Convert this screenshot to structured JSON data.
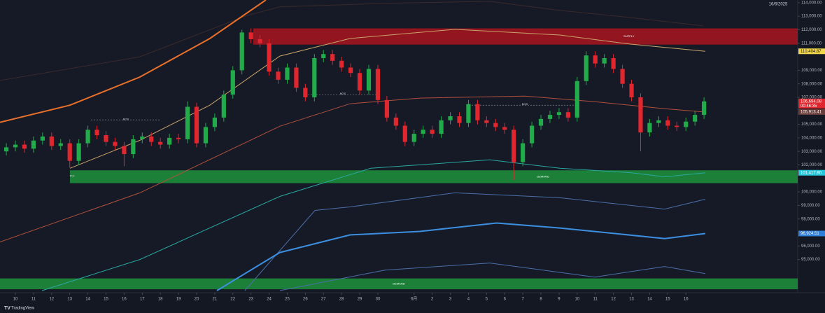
{
  "chart_data": {
    "type": "candlestick",
    "date_label": "16/6/2025",
    "brand": "TradingView",
    "countdown": "00:46:35",
    "up_color": "#22ab4a",
    "down_color": "#e0262e",
    "xlim": [
      -0.85,
      43.17
    ],
    "ylim": [
      92700,
      114200
    ],
    "xticks": [
      {
        "value": 0,
        "label": "10"
      },
      {
        "value": 1,
        "label": "11"
      },
      {
        "value": 2,
        "label": "12"
      },
      {
        "value": 3,
        "label": "13"
      },
      {
        "value": 4,
        "label": "14"
      },
      {
        "value": 5,
        "label": "15"
      },
      {
        "value": 6,
        "label": "16"
      },
      {
        "value": 7,
        "label": "17"
      },
      {
        "value": 8,
        "label": "18"
      },
      {
        "value": 9,
        "label": "19"
      },
      {
        "value": 10,
        "label": "20"
      },
      {
        "value": 11,
        "label": "21"
      },
      {
        "value": 12,
        "label": "22"
      },
      {
        "value": 13,
        "label": "23"
      },
      {
        "value": 14,
        "label": "24"
      },
      {
        "value": 15,
        "label": "25"
      },
      {
        "value": 16,
        "label": "26"
      },
      {
        "value": 17,
        "label": "27"
      },
      {
        "value": 18,
        "label": "28"
      },
      {
        "value": 19,
        "label": "29"
      },
      {
        "value": 20,
        "label": "30"
      },
      {
        "value": 22,
        "label": "6月"
      },
      {
        "value": 23,
        "label": "2"
      },
      {
        "value": 24,
        "label": "3"
      },
      {
        "value": 25,
        "label": "4"
      },
      {
        "value": 26,
        "label": "5"
      },
      {
        "value": 27,
        "label": "6"
      },
      {
        "value": 28,
        "label": "7"
      },
      {
        "value": 29,
        "label": "8"
      },
      {
        "value": 30,
        "label": "9"
      },
      {
        "value": 31,
        "label": "10"
      },
      {
        "value": 32,
        "label": "11"
      },
      {
        "value": 33,
        "label": "12"
      },
      {
        "value": 34,
        "label": "13"
      },
      {
        "value": 35,
        "label": "14"
      },
      {
        "value": 36,
        "label": "15"
      },
      {
        "value": 37,
        "label": "16"
      }
    ],
    "yticks": [
      {
        "value": 114000,
        "label": "114,000.00"
      },
      {
        "value": 113000,
        "label": "113,000.00"
      },
      {
        "value": 112000,
        "label": "112,000.00"
      },
      {
        "value": 111000,
        "label": "111,000.00"
      },
      {
        "value": 109000,
        "label": "109,000.00"
      },
      {
        "value": 108000,
        "label": "108,000.00"
      },
      {
        "value": 107000,
        "label": "107,000.00"
      },
      {
        "value": 105000,
        "label": "105,000.00"
      },
      {
        "value": 104000,
        "label": "104,000.00"
      },
      {
        "value": 103000,
        "label": "103,000.00"
      },
      {
        "value": 102000,
        "label": "102,000.00"
      },
      {
        "value": 100000,
        "label": "100,000.00"
      },
      {
        "value": 99000,
        "label": "99,000.00"
      },
      {
        "value": 98000,
        "label": "98,000.00"
      },
      {
        "value": 96000,
        "label": "96,000.00"
      },
      {
        "value": 95000,
        "label": "95,000.00"
      }
    ],
    "x": [
      -0.5,
      0,
      0.5,
      1,
      1.5,
      2,
      2.5,
      3,
      3.5,
      4,
      4.5,
      5,
      5.5,
      6,
      6.5,
      7,
      7.5,
      8,
      8.5,
      9,
      9.5,
      10,
      10.5,
      11,
      11.5,
      12,
      12.5,
      13,
      13.5,
      14,
      14.5,
      15,
      15.5,
      16,
      16.5,
      17,
      17.5,
      18,
      18.5,
      19,
      19.5,
      20,
      20.5,
      21,
      21.5,
      22,
      22.5,
      23,
      23.5,
      24,
      24.5,
      25,
      25.5,
      26,
      26.5,
      27,
      27.5,
      28,
      28.5,
      29,
      29.5,
      30,
      30.5,
      31,
      31.5,
      32,
      32.5,
      33,
      33.5,
      34,
      34.5,
      35,
      35.5,
      36,
      36.5,
      37,
      37.5,
      38
    ],
    "open": [
      103000,
      103300,
      103500,
      103200,
      103800,
      104100,
      103400,
      103600,
      102300,
      103600,
      104600,
      104200,
      103700,
      103400,
      102800,
      103900,
      104100,
      103700,
      103500,
      104000,
      103900,
      106300,
      103600,
      104800,
      105500,
      107200,
      109000,
      111800,
      111300,
      111000,
      108900,
      108300,
      109200,
      107700,
      107000,
      109900,
      110200,
      109700,
      109200,
      108800,
      107500,
      109100,
      106800,
      105500,
      104900,
      103700,
      104300,
      104600,
      104300,
      105300,
      105600,
      105100,
      106500,
      105300,
      105100,
      104800,
      104600,
      102200,
      103600,
      104900,
      105400,
      105700,
      105900,
      105500,
      108200,
      110100,
      109500,
      109900,
      109100,
      108000,
      107000,
      104400,
      105100,
      105300,
      104900,
      104800,
      105200,
      105700
    ],
    "high": [
      103600,
      103800,
      103800,
      104100,
      104400,
      104400,
      103900,
      103900,
      103900,
      104900,
      104900,
      104500,
      104000,
      103700,
      104200,
      104400,
      104400,
      104000,
      104300,
      104300,
      106700,
      106600,
      105100,
      105800,
      107500,
      109300,
      112000,
      112100,
      111600,
      111300,
      109200,
      109500,
      109500,
      108000,
      110200,
      110500,
      110500,
      110000,
      109500,
      109100,
      109400,
      109400,
      107100,
      105800,
      105200,
      104600,
      104900,
      104900,
      105600,
      105900,
      105900,
      106800,
      106800,
      105600,
      105400,
      105100,
      104900,
      103900,
      105200,
      105700,
      106000,
      106200,
      106200,
      108500,
      110400,
      110400,
      110200,
      110200,
      109400,
      108300,
      107300,
      105400,
      105600,
      105600,
      105200,
      105500,
      106000,
      107000
    ],
    "low": [
      102700,
      103000,
      102900,
      102900,
      103500,
      103100,
      103100,
      101800,
      102000,
      103300,
      103900,
      103400,
      103100,
      101900,
      102500,
      103600,
      103400,
      103200,
      103200,
      103600,
      103600,
      103300,
      103300,
      104500,
      105200,
      106900,
      108700,
      111000,
      110700,
      108600,
      108000,
      108000,
      107400,
      106700,
      106700,
      109600,
      109400,
      108900,
      108500,
      107200,
      107200,
      106500,
      105200,
      104600,
      103400,
      103400,
      104000,
      104000,
      104000,
      105000,
      104800,
      104800,
      105000,
      104800,
      104500,
      104300,
      100900,
      101900,
      103300,
      104600,
      105100,
      105400,
      105200,
      105200,
      107900,
      109200,
      109200,
      108800,
      107700,
      106700,
      103000,
      104100,
      104800,
      104600,
      104500,
      104500,
      104900,
      105400
    ],
    "close": [
      103300,
      103500,
      103200,
      103800,
      104100,
      103400,
      103600,
      102300,
      103600,
      104600,
      104200,
      103700,
      103400,
      102800,
      103900,
      104100,
      103700,
      103500,
      104000,
      103900,
      106300,
      103600,
      104800,
      105500,
      107200,
      109000,
      111800,
      111300,
      111000,
      108900,
      108300,
      109200,
      107700,
      107000,
      109900,
      110200,
      109700,
      109200,
      108800,
      107500,
      109100,
      106800,
      105500,
      104900,
      103700,
      104300,
      104600,
      104300,
      105300,
      105600,
      105100,
      106500,
      105300,
      105100,
      104800,
      104600,
      102200,
      103600,
      104900,
      105400,
      105700,
      105900,
      105500,
      108200,
      110100,
      109500,
      109900,
      109100,
      108000,
      107000,
      104400,
      105100,
      105300,
      104900,
      104800,
      105200,
      105700,
      106700
    ],
    "series": [
      {
        "color": "#3a2a2c",
        "width": 1,
        "x": [
          -0.85,
          6.87,
          12.66,
          14.59,
          20.39,
          26.18,
          30.04,
          33.9,
          37.95
        ],
        "values": [
          108240,
          110000,
          113000,
          113700,
          113950,
          114100,
          113430,
          112910,
          112290
        ]
      },
      {
        "color": "#e8702a",
        "width": 2,
        "x": [
          -0.85,
          3.01,
          6.87,
          10.73,
          13.82
        ],
        "values": [
          105150,
          106420,
          108500,
          111350,
          114200
        ]
      },
      {
        "color": "#c9a46a",
        "width": 1,
        "x": [
          3.01,
          6.87,
          10.73,
          14.59,
          18.46,
          24.25,
          30.04,
          33.9,
          38.07
        ],
        "values": [
          101750,
          103820,
          106420,
          110050,
          111350,
          112030,
          111610,
          110940,
          110404.87
        ]
      },
      {
        "color": "#b0503c",
        "width": 1,
        "x": [
          -0.85,
          6.87,
          14.59,
          18.46,
          22.32,
          28.11,
          31.97,
          35.83,
          38.07
        ],
        "values": [
          96300,
          99930,
          104860,
          106520,
          106940,
          107090,
          106680,
          106160,
          105913.41
        ]
      },
      {
        "color": "#2aa7a0",
        "width": 1,
        "x": [
          1.47,
          6.87,
          14.59,
          19.61,
          26.18,
          30.04,
          33.9,
          35.83,
          38.07
        ],
        "values": [
          92700,
          95000,
          99670,
          101750,
          102370,
          101750,
          101430,
          101120,
          101417.9
        ]
      },
      {
        "color": "#4a6fa8",
        "width": 1,
        "x": [
          12.66,
          16.53,
          18.46,
          24.25,
          30.04,
          35.83,
          38.07
        ],
        "values": [
          92700,
          98630,
          98890,
          99930,
          99570,
          98730,
          99460
        ]
      },
      {
        "color": "#3c8fe0",
        "width": 2,
        "x": [
          11.12,
          14.59,
          18.46,
          22.32,
          26.56,
          30.04,
          35.83,
          38.07
        ],
        "values": [
          92700,
          95520,
          96820,
          97080,
          97700,
          97330,
          96550,
          96924.51
        ]
      },
      {
        "color": "#4a6fa8",
        "width": 1,
        "x": [
          14.59,
          20.39,
          26.18,
          31.97,
          35.83,
          38.07
        ],
        "values": [
          92700,
          94220,
          94740,
          93700,
          94480,
          93960
        ]
      }
    ],
    "zones": [
      {
        "name": "SUPPLY",
        "color": "#b3141f",
        "x": 13.13,
        "low": 110900,
        "high": 112100
      },
      {
        "name": "DEMAND",
        "color": "#1e9a3d",
        "x": 3.01,
        "low": 100650,
        "high": 101600
      },
      {
        "name": "DEMAND",
        "color": "#1e9a3d",
        "x": -0.85,
        "low": 92800,
        "high": 93600
      }
    ],
    "annotations": [
      {
        "text": "BOS",
        "x": [
          4.17,
          8.03
        ],
        "y": 105330
      },
      {
        "text": "BOS",
        "x": [
          16.14,
          20
        ],
        "y": 107200
      },
      {
        "text": "BOS",
        "x": [
          25.02,
          31.2
        ],
        "y": 106420
      },
      {
        "text": "POI",
        "x": [
          3.13,
          3.13
        ],
        "y": 101120
      }
    ],
    "price_labels": [
      {
        "value": 110404.87,
        "label": "110,404.87",
        "color": "#f2d64b"
      },
      {
        "value": 106694.08,
        "label": "106,694.08",
        "color": "#e0262e"
      },
      {
        "value": 105913.41,
        "label": "105,913.41",
        "color": "#6b3d3a"
      },
      {
        "value": 101417.9,
        "label": "101,417.90",
        "color": "#26c6da"
      },
      {
        "value": 96924.51,
        "label": "96,924.51",
        "color": "#2f7fd6"
      }
    ]
  }
}
